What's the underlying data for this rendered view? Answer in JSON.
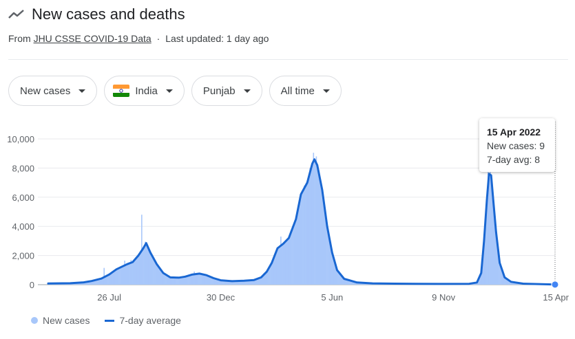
{
  "header": {
    "title": "New cases and deaths",
    "icon": "trending-line-icon"
  },
  "source": {
    "prefix": "From",
    "link_text": "JHU CSSE COVID-19 Data",
    "separator": "·",
    "updated": "Last updated: 1 day ago"
  },
  "filters": {
    "metric": "New cases",
    "country": "India",
    "region": "Punjab",
    "range": "All time"
  },
  "tooltip": {
    "date": "15 Apr 2022",
    "new_cases": "New cases: 9",
    "avg": "7-day avg: 8"
  },
  "legend": {
    "bars": "New cases",
    "line": "7-day average"
  },
  "colors": {
    "bar": "#a8c7fa",
    "line": "#1967d2",
    "india_saffron": "#ff9933",
    "india_green": "#138808"
  },
  "chart_data": {
    "type": "bar",
    "title": "",
    "xlabel": "",
    "ylabel": "",
    "ylim": [
      0,
      10000
    ],
    "y_ticks": [
      0,
      2000,
      4000,
      6000,
      8000,
      10000
    ],
    "y_tick_labels": [
      "0",
      "2,000",
      "4,000",
      "6,000",
      "8,000",
      "10,000"
    ],
    "x_tick_labels": [
      "26 Jul",
      "30 Dec",
      "5 Jun",
      "9 Nov",
      "15 Apr"
    ],
    "x_tick_dates": [
      "2020-07-26",
      "2020-12-30",
      "2021-06-05",
      "2021-11-09",
      "2022-04-15"
    ],
    "grid": true,
    "series": [
      {
        "name": "7-day average",
        "type": "line",
        "points": [
          [
            "2020-05-01",
            80
          ],
          [
            "2020-06-01",
            100
          ],
          [
            "2020-06-20",
            160
          ],
          [
            "2020-07-01",
            250
          ],
          [
            "2020-07-15",
            420
          ],
          [
            "2020-07-26",
            700
          ],
          [
            "2020-08-05",
            1050
          ],
          [
            "2020-08-20",
            1400
          ],
          [
            "2020-08-28",
            1550
          ],
          [
            "2020-09-05",
            2000
          ],
          [
            "2020-09-12",
            2500
          ],
          [
            "2020-09-16",
            2850
          ],
          [
            "2020-09-22",
            2200
          ],
          [
            "2020-10-01",
            1400
          ],
          [
            "2020-10-10",
            800
          ],
          [
            "2020-10-20",
            500
          ],
          [
            "2020-11-01",
            480
          ],
          [
            "2020-11-10",
            550
          ],
          [
            "2020-11-20",
            700
          ],
          [
            "2020-11-30",
            760
          ],
          [
            "2020-12-10",
            650
          ],
          [
            "2020-12-20",
            450
          ],
          [
            "2020-12-30",
            300
          ],
          [
            "2021-01-15",
            240
          ],
          [
            "2021-02-01",
            270
          ],
          [
            "2021-02-15",
            320
          ],
          [
            "2021-02-25",
            500
          ],
          [
            "2021-03-05",
            900
          ],
          [
            "2021-03-12",
            1500
          ],
          [
            "2021-03-20",
            2500
          ],
          [
            "2021-03-28",
            2800
          ],
          [
            "2021-04-05",
            3200
          ],
          [
            "2021-04-15",
            4500
          ],
          [
            "2021-04-22",
            6200
          ],
          [
            "2021-05-01",
            7000
          ],
          [
            "2021-05-08",
            8300
          ],
          [
            "2021-05-11",
            8600
          ],
          [
            "2021-05-15",
            8200
          ],
          [
            "2021-05-22",
            6500
          ],
          [
            "2021-05-29",
            4000
          ],
          [
            "2021-06-05",
            2200
          ],
          [
            "2021-06-12",
            1000
          ],
          [
            "2021-06-22",
            400
          ],
          [
            "2021-07-10",
            150
          ],
          [
            "2021-08-01",
            90
          ],
          [
            "2021-09-01",
            70
          ],
          [
            "2021-10-01",
            60
          ],
          [
            "2021-11-09",
            50
          ],
          [
            "2021-12-15",
            60
          ],
          [
            "2021-12-26",
            150
          ],
          [
            "2022-01-01",
            800
          ],
          [
            "2022-01-05",
            3000
          ],
          [
            "2022-01-09",
            5800
          ],
          [
            "2022-01-12",
            7600
          ],
          [
            "2022-01-15",
            7500
          ],
          [
            "2022-01-18",
            5800
          ],
          [
            "2022-01-22",
            3600
          ],
          [
            "2022-01-27",
            1500
          ],
          [
            "2022-02-03",
            500
          ],
          [
            "2022-02-12",
            200
          ],
          [
            "2022-03-01",
            70
          ],
          [
            "2022-04-15",
            8
          ]
        ]
      }
    ],
    "spikes": [
      [
        "2020-07-18",
        1150
      ],
      [
        "2020-08-16",
        1650
      ],
      [
        "2020-08-25",
        1700
      ],
      [
        "2020-09-09",
        4800
      ],
      [
        "2020-09-14",
        2950
      ],
      [
        "2020-11-22",
        900
      ],
      [
        "2021-03-24",
        3300
      ],
      [
        "2021-04-26",
        6800
      ],
      [
        "2021-05-04",
        8000
      ],
      [
        "2021-05-09",
        9050
      ],
      [
        "2021-05-13",
        8800
      ],
      [
        "2022-01-10",
        8050
      ],
      [
        "2022-01-13",
        7950
      ]
    ],
    "highlight": {
      "date": "2022-04-15",
      "new_cases": 9,
      "avg": 8
    }
  }
}
